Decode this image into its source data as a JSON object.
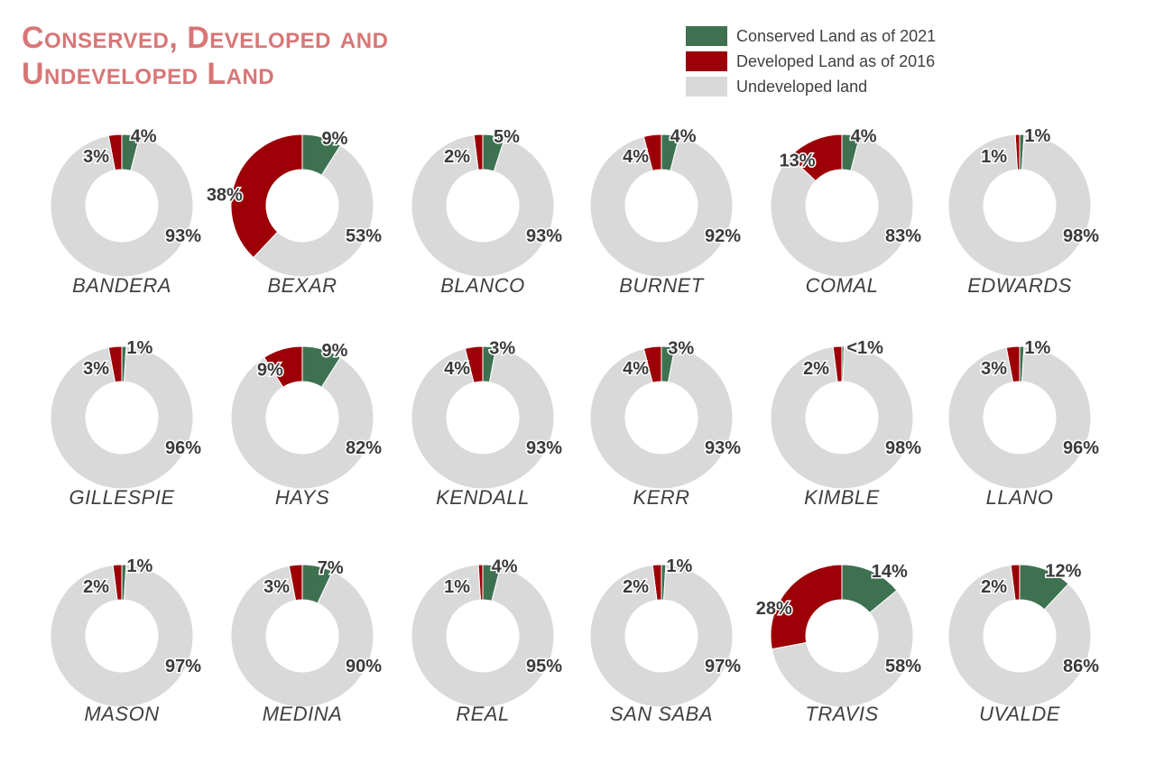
{
  "title_line1": "Conserved, Developed and",
  "title_line2": "Undeveloped Land",
  "legend": [
    {
      "label": "Conserved Land as of 2021",
      "color": "#3e7150"
    },
    {
      "label": "Developed Land as of 2016",
      "color": "#9c0006"
    },
    {
      "label": "Undeveloped land",
      "color": "#d9d9d9"
    }
  ],
  "chart_data": {
    "type": "pie",
    "series_names": [
      "Conserved Land as of 2021",
      "Developed Land as of 2016",
      "Undeveloped land"
    ],
    "charts": [
      {
        "county": "BANDERA",
        "values": [
          4,
          3,
          93
        ],
        "labels": [
          "4%",
          "3%",
          "93%"
        ]
      },
      {
        "county": "BEXAR",
        "values": [
          9,
          38,
          53
        ],
        "labels": [
          "9%",
          "38%",
          "53%"
        ]
      },
      {
        "county": "BLANCO",
        "values": [
          5,
          2,
          93
        ],
        "labels": [
          "5%",
          "2%",
          "93%"
        ]
      },
      {
        "county": "BURNET",
        "values": [
          4,
          4,
          92
        ],
        "labels": [
          "4%",
          "4%",
          "92%"
        ]
      },
      {
        "county": "COMAL",
        "values": [
          4,
          13,
          83
        ],
        "labels": [
          "4%",
          "13%",
          "83%"
        ]
      },
      {
        "county": "EDWARDS",
        "values": [
          1,
          1,
          98
        ],
        "labels": [
          "1%",
          "1%",
          "98%"
        ]
      },
      {
        "county": "GILLESPIE",
        "values": [
          1,
          3,
          96
        ],
        "labels": [
          "1%",
          "3%",
          "96%"
        ]
      },
      {
        "county": "HAYS",
        "values": [
          9,
          9,
          82
        ],
        "labels": [
          "9%",
          "9%",
          "82%"
        ]
      },
      {
        "county": "KENDALL",
        "values": [
          3,
          4,
          93
        ],
        "labels": [
          "3%",
          "4%",
          "93%"
        ]
      },
      {
        "county": "KERR",
        "values": [
          3,
          4,
          93
        ],
        "labels": [
          "3%",
          "4%",
          "93%"
        ]
      },
      {
        "county": "KIMBLE",
        "values": [
          0.5,
          2,
          98
        ],
        "labels": [
          "<1%",
          "2%",
          "98%"
        ]
      },
      {
        "county": "LLANO",
        "values": [
          1,
          3,
          96
        ],
        "labels": [
          "1%",
          "3%",
          "96%"
        ]
      },
      {
        "county": "MASON",
        "values": [
          1,
          2,
          97
        ],
        "labels": [
          "1%",
          "2%",
          "97%"
        ]
      },
      {
        "county": "MEDINA",
        "values": [
          7,
          3,
          90
        ],
        "labels": [
          "7%",
          "3%",
          "90%"
        ]
      },
      {
        "county": "REAL",
        "values": [
          4,
          1,
          95
        ],
        "labels": [
          "4%",
          "1%",
          "95%"
        ]
      },
      {
        "county": "SAN SABA",
        "values": [
          1,
          2,
          97
        ],
        "labels": [
          "1%",
          "2%",
          "97%"
        ]
      },
      {
        "county": "TRAVIS",
        "values": [
          14,
          28,
          58
        ],
        "labels": [
          "14%",
          "28%",
          "58%"
        ]
      },
      {
        "county": "UVALDE",
        "values": [
          12,
          2,
          86
        ],
        "labels": [
          "12%",
          "2%",
          "86%"
        ]
      }
    ]
  }
}
